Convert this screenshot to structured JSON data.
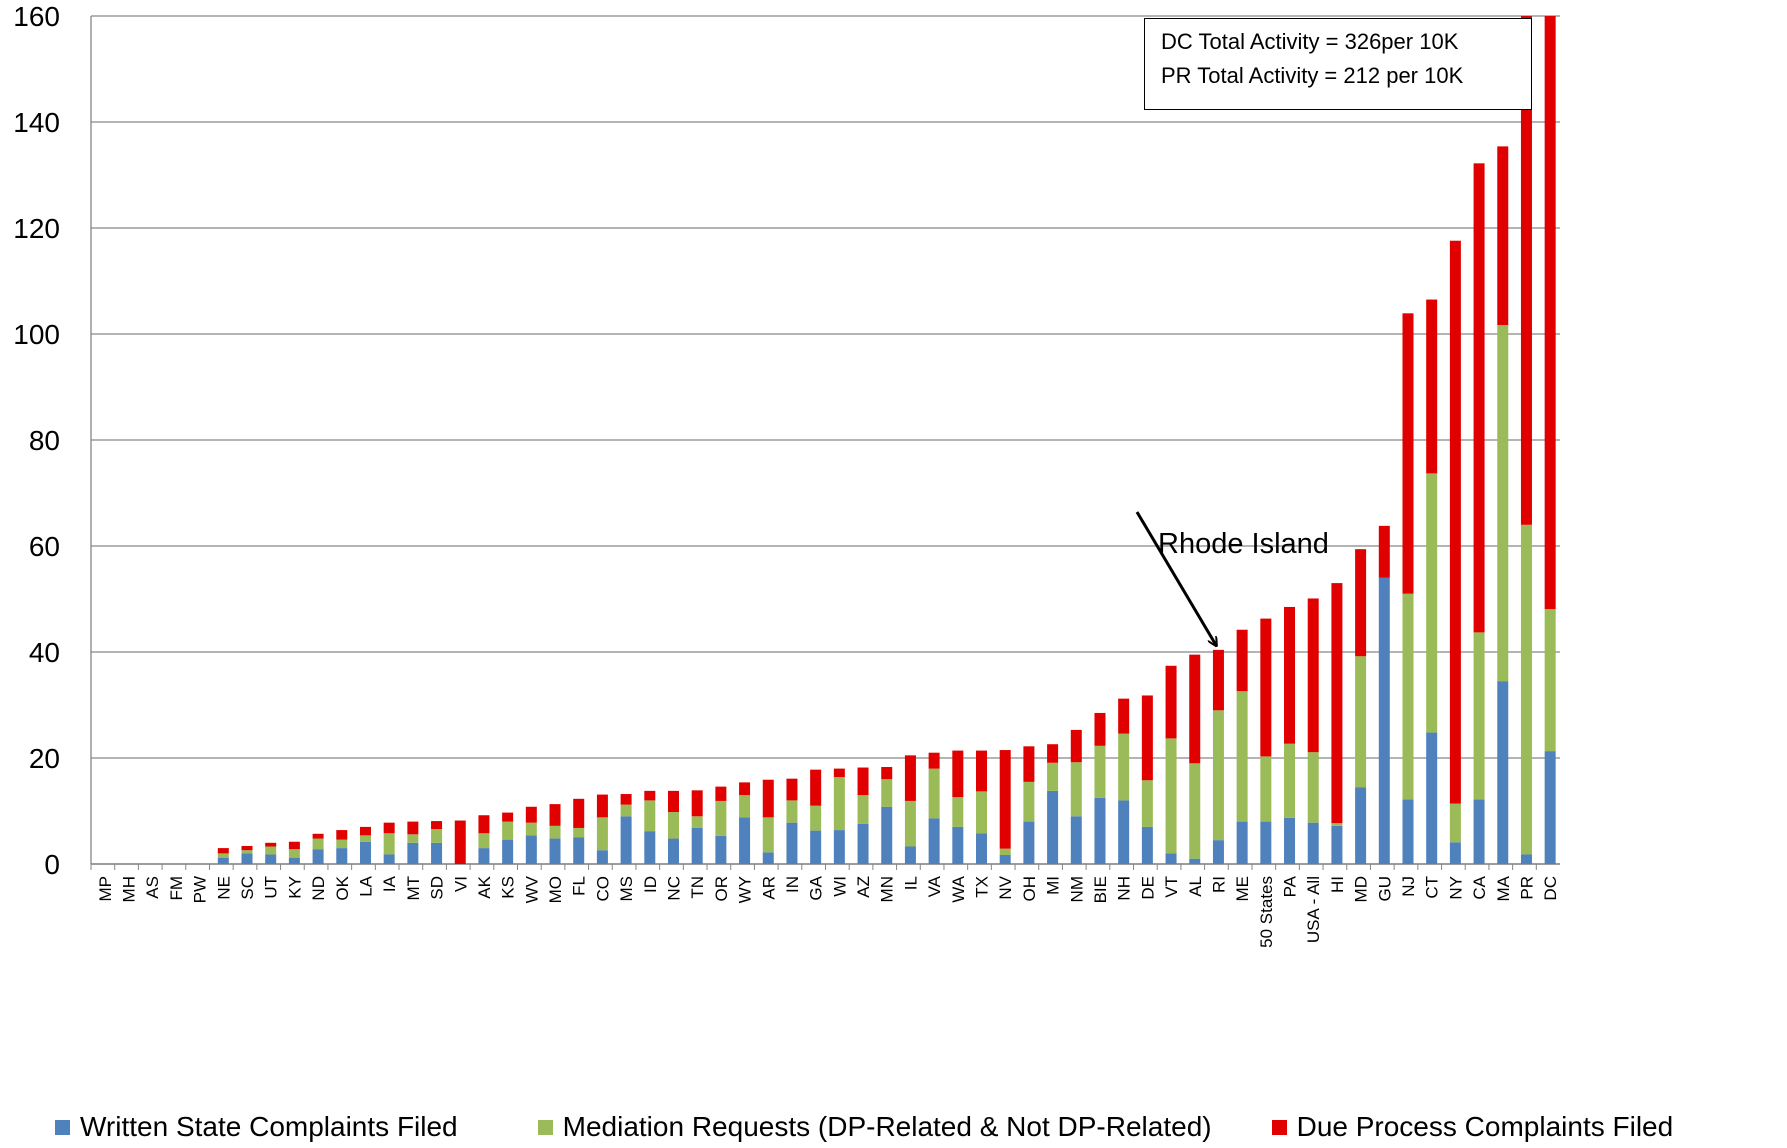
{
  "colors": {
    "written": "#4f81bd",
    "mediation": "#9bbb59",
    "due_process": "#e00000",
    "grid": "#868686"
  },
  "chart_data": {
    "type": "bar",
    "stacked": true,
    "ylim": [
      0,
      160
    ],
    "yticks": [
      "0",
      "20",
      "40",
      "60",
      "80",
      "100",
      "120",
      "140",
      "160"
    ],
    "grid": true,
    "legend_position": "bottom",
    "categories": [
      "MP",
      "MH",
      "AS",
      "FM",
      "PW",
      "NE",
      "SC",
      "UT",
      "KY",
      "ND",
      "OK",
      "LA",
      "IA",
      "MT",
      "SD",
      "VI",
      "AK",
      "KS",
      "WV",
      "MO",
      "FL",
      "CO",
      "MS",
      "ID",
      "NC",
      "TN",
      "OR",
      "WY",
      "AR",
      "IN",
      "GA",
      "WI",
      "AZ",
      "MN",
      "IL",
      "VA",
      "WA",
      "TX",
      "NV",
      "OH",
      "MI",
      "NM",
      "BIE",
      "NH",
      "DE",
      "VT",
      "AL",
      "RI",
      "ME",
      "50 States",
      "PA",
      "USA - All",
      "HI",
      "MD",
      "GU",
      "NJ",
      "CT",
      "NY",
      "CA",
      "MA",
      "PR",
      "DC"
    ],
    "series": [
      {
        "name": "Written State Complaints Filed",
        "values": [
          0,
          0,
          0,
          0,
          0,
          1.2,
          2,
          1.8,
          1.2,
          2.8,
          3,
          4.2,
          1.8,
          4,
          4,
          0,
          3,
          4.6,
          5.4,
          4.8,
          5,
          2.6,
          9,
          6.2,
          4.8,
          6.8,
          5.3,
          8.8,
          2.2,
          7.8,
          6.3,
          6.4,
          7.6,
          10.8,
          3.3,
          8.6,
          7,
          5.8,
          1.7,
          8,
          13.8,
          9,
          12.5,
          12,
          7,
          2,
          1,
          4.5,
          8,
          8,
          8.7,
          7.8,
          7.2,
          14.5,
          54,
          12.2,
          24.8,
          4.1,
          12.2,
          34.5,
          1.8,
          21.3
        ]
      },
      {
        "name": "Mediation Requests (DP-Related & Not DP-Related)",
        "values": [
          0,
          0,
          0,
          0,
          0,
          0.8,
          0.6,
          1.5,
          1.6,
          2,
          1.6,
          1.2,
          4,
          1.6,
          2.6,
          0,
          2.8,
          3.4,
          2.4,
          2.4,
          1.8,
          6.2,
          2.2,
          5.8,
          5,
          2.2,
          6.6,
          4.2,
          6.6,
          4.2,
          4.7,
          10,
          5.4,
          5.2,
          8.6,
          9.4,
          5.6,
          7.9,
          1.2,
          7.5,
          5.3,
          10.2,
          9.8,
          12.6,
          8.8,
          21.7,
          18,
          24.5,
          24.6,
          12.3,
          14,
          13.3,
          0.5,
          24.7,
          0,
          38.8,
          48.9,
          7.3,
          31.5,
          67.2,
          62.2,
          26.8
        ]
      },
      {
        "name": "Due Process Complaints Filed",
        "values": [
          0,
          0,
          0,
          0,
          0,
          1,
          0.8,
          0.7,
          1.4,
          0.9,
          1.8,
          1.6,
          2,
          2.4,
          1.5,
          8.2,
          3.4,
          1.7,
          3,
          4.1,
          5.5,
          4.3,
          2,
          1.8,
          4,
          4.9,
          2.7,
          2.4,
          7.1,
          4.1,
          6.8,
          1.6,
          5.2,
          2.3,
          8.6,
          3,
          8.8,
          7.7,
          18.6,
          6.7,
          3.5,
          6.1,
          6.2,
          6.6,
          16,
          13.7,
          20.5,
          11.4,
          11.6,
          26,
          25.8,
          29,
          45.3,
          20.2,
          9.8,
          52.9,
          32.8,
          106.2,
          88.5,
          33.7,
          96,
          111.9
        ]
      }
    ],
    "annotations": {
      "box_line1": "DC Total Activity = 326per 10K",
      "box_line2": "PR Total Activity = 212 per 10K",
      "rhode_island_label": "Rhode Island"
    }
  }
}
